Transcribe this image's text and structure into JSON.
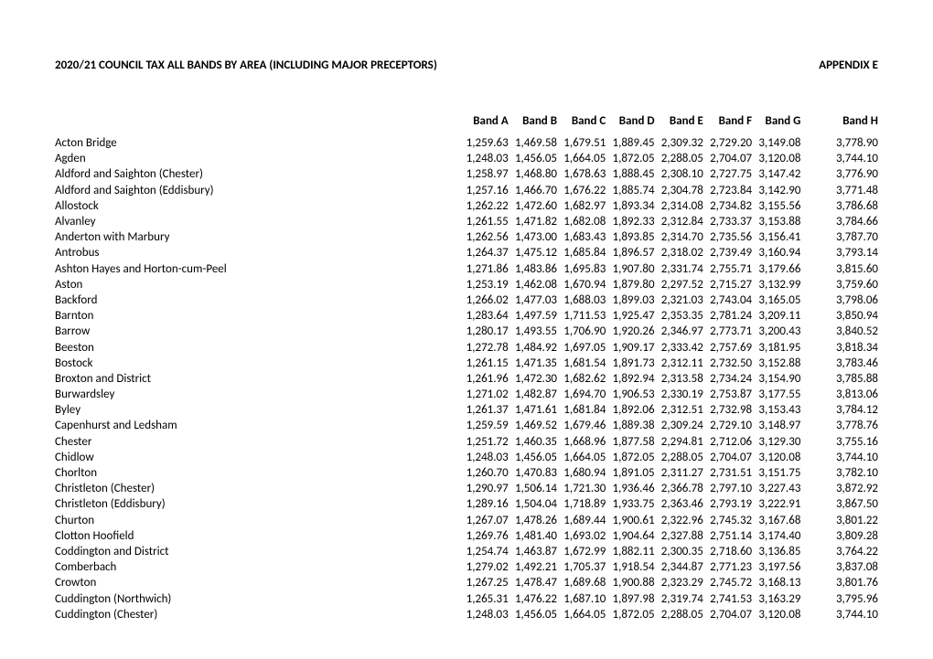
{
  "title_left": "2020/21 COUNCIL TAX ALL BANDS BY AREA (INCLUDING MAJOR PRECEPTORS)",
  "title_right": "APPENDIX E",
  "columns": [
    "Band A",
    "Band B",
    "Band C",
    "Band D",
    "Band E",
    "Band F",
    "Band G",
    "Band H"
  ],
  "rows": [
    {
      "area": "Acton Bridge",
      "v": [
        "1,259.63",
        "1,469.58",
        "1,679.51",
        "1,889.45",
        "2,309.32",
        "2,729.20",
        "3,149.08",
        "3,778.90"
      ]
    },
    {
      "area": "Agden",
      "v": [
        "1,248.03",
        "1,456.05",
        "1,664.05",
        "1,872.05",
        "2,288.05",
        "2,704.07",
        "3,120.08",
        "3,744.10"
      ]
    },
    {
      "area": "Aldford and Saighton (Chester)",
      "v": [
        "1,258.97",
        "1,468.80",
        "1,678.63",
        "1,888.45",
        "2,308.10",
        "2,727.75",
        "3,147.42",
        "3,776.90"
      ]
    },
    {
      "area": "Aldford and Saighton (Eddisbury)",
      "v": [
        "1,257.16",
        "1,466.70",
        "1,676.22",
        "1,885.74",
        "2,304.78",
        "2,723.84",
        "3,142.90",
        "3,771.48"
      ]
    },
    {
      "area": "Allostock",
      "v": [
        "1,262.22",
        "1,472.60",
        "1,682.97",
        "1,893.34",
        "2,314.08",
        "2,734.82",
        "3,155.56",
        "3,786.68"
      ]
    },
    {
      "area": "Alvanley",
      "v": [
        "1,261.55",
        "1,471.82",
        "1,682.08",
        "1,892.33",
        "2,312.84",
        "2,733.37",
        "3,153.88",
        "3,784.66"
      ]
    },
    {
      "area": "Anderton with Marbury",
      "v": [
        "1,262.56",
        "1,473.00",
        "1,683.43",
        "1,893.85",
        "2,314.70",
        "2,735.56",
        "3,156.41",
        "3,787.70"
      ]
    },
    {
      "area": "Antrobus",
      "v": [
        "1,264.37",
        "1,475.12",
        "1,685.84",
        "1,896.57",
        "2,318.02",
        "2,739.49",
        "3,160.94",
        "3,793.14"
      ]
    },
    {
      "area": "Ashton Hayes and Horton-cum-Peel",
      "v": [
        "1,271.86",
        "1,483.86",
        "1,695.83",
        "1,907.80",
        "2,331.74",
        "2,755.71",
        "3,179.66",
        "3,815.60"
      ]
    },
    {
      "area": "Aston",
      "v": [
        "1,253.19",
        "1,462.08",
        "1,670.94",
        "1,879.80",
        "2,297.52",
        "2,715.27",
        "3,132.99",
        "3,759.60"
      ]
    },
    {
      "area": "Backford",
      "v": [
        "1,266.02",
        "1,477.03",
        "1,688.03",
        "1,899.03",
        "2,321.03",
        "2,743.04",
        "3,165.05",
        "3,798.06"
      ]
    },
    {
      "area": "Barnton",
      "v": [
        "1,283.64",
        "1,497.59",
        "1,711.53",
        "1,925.47",
        "2,353.35",
        "2,781.24",
        "3,209.11",
        "3,850.94"
      ]
    },
    {
      "area": "Barrow",
      "v": [
        "1,280.17",
        "1,493.55",
        "1,706.90",
        "1,920.26",
        "2,346.97",
        "2,773.71",
        "3,200.43",
        "3,840.52"
      ]
    },
    {
      "area": "Beeston",
      "v": [
        "1,272.78",
        "1,484.92",
        "1,697.05",
        "1,909.17",
        "2,333.42",
        "2,757.69",
        "3,181.95",
        "3,818.34"
      ]
    },
    {
      "area": "Bostock",
      "v": [
        "1,261.15",
        "1,471.35",
        "1,681.54",
        "1,891.73",
        "2,312.11",
        "2,732.50",
        "3,152.88",
        "3,783.46"
      ]
    },
    {
      "area": "Broxton and District",
      "v": [
        "1,261.96",
        "1,472.30",
        "1,682.62",
        "1,892.94",
        "2,313.58",
        "2,734.24",
        "3,154.90",
        "3,785.88"
      ]
    },
    {
      "area": "Burwardsley",
      "v": [
        "1,271.02",
        "1,482.87",
        "1,694.70",
        "1,906.53",
        "2,330.19",
        "2,753.87",
        "3,177.55",
        "3,813.06"
      ]
    },
    {
      "area": "Byley",
      "v": [
        "1,261.37",
        "1,471.61",
        "1,681.84",
        "1,892.06",
        "2,312.51",
        "2,732.98",
        "3,153.43",
        "3,784.12"
      ]
    },
    {
      "area": "Capenhurst and Ledsham",
      "v": [
        "1,259.59",
        "1,469.52",
        "1,679.46",
        "1,889.38",
        "2,309.24",
        "2,729.10",
        "3,148.97",
        "3,778.76"
      ]
    },
    {
      "area": "Chester",
      "v": [
        "1,251.72",
        "1,460.35",
        "1,668.96",
        "1,877.58",
        "2,294.81",
        "2,712.06",
        "3,129.30",
        "3,755.16"
      ]
    },
    {
      "area": "Chidlow",
      "v": [
        "1,248.03",
        "1,456.05",
        "1,664.05",
        "1,872.05",
        "2,288.05",
        "2,704.07",
        "3,120.08",
        "3,744.10"
      ]
    },
    {
      "area": "Chorlton",
      "v": [
        "1,260.70",
        "1,470.83",
        "1,680.94",
        "1,891.05",
        "2,311.27",
        "2,731.51",
        "3,151.75",
        "3,782.10"
      ]
    },
    {
      "area": "Christleton (Chester)",
      "v": [
        "1,290.97",
        "1,506.14",
        "1,721.30",
        "1,936.46",
        "2,366.78",
        "2,797.10",
        "3,227.43",
        "3,872.92"
      ]
    },
    {
      "area": "Christleton (Eddisbury)",
      "v": [
        "1,289.16",
        "1,504.04",
        "1,718.89",
        "1,933.75",
        "2,363.46",
        "2,793.19",
        "3,222.91",
        "3,867.50"
      ]
    },
    {
      "area": "Churton",
      "v": [
        "1,267.07",
        "1,478.26",
        "1,689.44",
        "1,900.61",
        "2,322.96",
        "2,745.32",
        "3,167.68",
        "3,801.22"
      ]
    },
    {
      "area": "Clotton Hoofield",
      "v": [
        "1,269.76",
        "1,481.40",
        "1,693.02",
        "1,904.64",
        "2,327.88",
        "2,751.14",
        "3,174.40",
        "3,809.28"
      ]
    },
    {
      "area": "Coddington and District",
      "v": [
        "1,254.74",
        "1,463.87",
        "1,672.99",
        "1,882.11",
        "2,300.35",
        "2,718.60",
        "3,136.85",
        "3,764.22"
      ]
    },
    {
      "area": "Comberbach",
      "v": [
        "1,279.02",
        "1,492.21",
        "1,705.37",
        "1,918.54",
        "2,344.87",
        "2,771.23",
        "3,197.56",
        "3,837.08"
      ]
    },
    {
      "area": "Crowton",
      "v": [
        "1,267.25",
        "1,478.47",
        "1,689.68",
        "1,900.88",
        "2,323.29",
        "2,745.72",
        "3,168.13",
        "3,801.76"
      ]
    },
    {
      "area": "Cuddington (Northwich)",
      "v": [
        "1,265.31",
        "1,476.22",
        "1,687.10",
        "1,897.98",
        "2,319.74",
        "2,741.53",
        "3,163.29",
        "3,795.96"
      ]
    },
    {
      "area": "Cuddington (Chester)",
      "v": [
        "1,248.03",
        "1,456.05",
        "1,664.05",
        "1,872.05",
        "2,288.05",
        "2,704.07",
        "3,120.08",
        "3,744.10"
      ]
    }
  ]
}
